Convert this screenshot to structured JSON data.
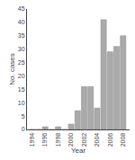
{
  "chart_data": {
    "type": "bar",
    "x": [
      1994,
      1995,
      1996,
      1997,
      1998,
      1999,
      2000,
      2001,
      2002,
      2003,
      2004,
      2005,
      2006,
      2007,
      2008
    ],
    "values": [
      0,
      0,
      1,
      0,
      1,
      0,
      2,
      7,
      16,
      16,
      8,
      41,
      29,
      31,
      35
    ],
    "color": "#aaaaaa",
    "xlabel": "Year",
    "ylabel": "No. cases",
    "xlim": [
      1993.2,
      2009.0
    ],
    "xticks": [
      1994,
      1996,
      1998,
      2000,
      2002,
      2004,
      2006,
      2008
    ],
    "ylim": [
      0,
      45
    ],
    "yticks": [
      0,
      5,
      10,
      15,
      20,
      25,
      30,
      35,
      40,
      45
    ],
    "grid": false
  }
}
